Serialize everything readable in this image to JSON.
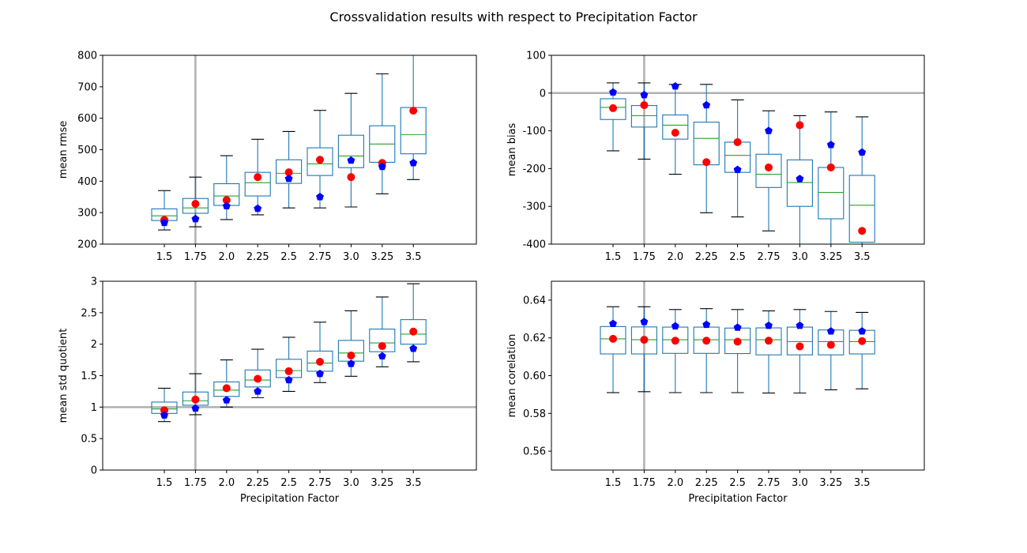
{
  "figure": {
    "title": "Crossvalidation results with respect to Precipitation Factor"
  },
  "chart_data": [
    {
      "type": "box",
      "xlabel": "",
      "ylabel": "mean rmse",
      "categories": [
        "1.5",
        "1.75",
        "2.0",
        "2.25",
        "2.5",
        "2.75",
        "3.0",
        "3.25",
        "3.5"
      ],
      "ylim": [
        200,
        800
      ],
      "yticks": [
        200,
        300,
        400,
        500,
        600,
        700,
        800
      ],
      "ref_vline": "1.75",
      "ref_hline": null,
      "boxes": [
        {
          "whislo": 245,
          "q1": 275,
          "med": 290,
          "q3": 312,
          "whishi": 370
        },
        {
          "whislo": 255,
          "q1": 298,
          "med": 315,
          "q3": 345,
          "whishi": 413
        },
        {
          "whislo": 278,
          "q1": 323,
          "med": 353,
          "q3": 392,
          "whishi": 481
        },
        {
          "whislo": 293,
          "q1": 353,
          "med": 395,
          "q3": 428,
          "whishi": 533
        },
        {
          "whislo": 315,
          "q1": 393,
          "med": 425,
          "q3": 468,
          "whishi": 558
        },
        {
          "whislo": 315,
          "q1": 418,
          "med": 455,
          "q3": 506,
          "whishi": 625
        },
        {
          "whislo": 318,
          "q1": 443,
          "med": 480,
          "q3": 546,
          "whishi": 679
        },
        {
          "whislo": 360,
          "q1": 460,
          "med": 518,
          "q3": 576,
          "whishi": 741
        },
        {
          "whislo": 405,
          "q1": 487,
          "med": 548,
          "q3": 634,
          "whishi": 800
        }
      ],
      "red_points": [
        277,
        328,
        340,
        413,
        428,
        468,
        413,
        458,
        624
      ],
      "blue_points": [
        268,
        280,
        321,
        313,
        408,
        350,
        466,
        446,
        458
      ]
    },
    {
      "type": "box",
      "xlabel": "",
      "ylabel": "mean bias",
      "categories": [
        "1.5",
        "1.75",
        "2.0",
        "2.25",
        "2.5",
        "2.75",
        "3.0",
        "3.25",
        "3.5"
      ],
      "ylim": [
        -400,
        100
      ],
      "yticks": [
        -400,
        -300,
        -200,
        -100,
        0,
        100
      ],
      "ref_vline": "1.75",
      "ref_hline": 0,
      "boxes": [
        {
          "whislo": -153,
          "q1": -70,
          "med": -38,
          "q3": -15,
          "whishi": 27
        },
        {
          "whislo": -175,
          "q1": -90,
          "med": -60,
          "q3": -33,
          "whishi": 27
        },
        {
          "whislo": -215,
          "q1": -122,
          "med": -85,
          "q3": -58,
          "whishi": 23
        },
        {
          "whislo": -317,
          "q1": -190,
          "med": -120,
          "q3": -77,
          "whishi": 23
        },
        {
          "whislo": -328,
          "q1": -210,
          "med": -165,
          "q3": -130,
          "whishi": -18
        },
        {
          "whislo": -365,
          "q1": -250,
          "med": -215,
          "q3": -162,
          "whishi": -47
        },
        {
          "whislo": -400,
          "q1": -300,
          "med": -237,
          "q3": -177,
          "whishi": -60
        },
        {
          "whislo": -400,
          "q1": -333,
          "med": -263,
          "q3": -197,
          "whishi": -50
        },
        {
          "whislo": -400,
          "q1": -395,
          "med": -297,
          "q3": -218,
          "whishi": -63
        }
      ],
      "red_points": [
        -40,
        -32,
        -105,
        -183,
        -130,
        -197,
        -85,
        -197,
        -365
      ],
      "blue_points": [
        2,
        -5,
        18,
        -32,
        -203,
        -100,
        -227,
        -137,
        -157
      ]
    },
    {
      "type": "box",
      "xlabel": "Precipitation Factor",
      "ylabel": "mean std quotient",
      "categories": [
        "1.5",
        "1.75",
        "2.0",
        "2.25",
        "2.5",
        "2.75",
        "3.0",
        "3.25",
        "3.5"
      ],
      "ylim": [
        0.0,
        3.0
      ],
      "yticks": [
        0.0,
        0.5,
        1.0,
        1.5,
        2.0,
        2.5,
        3.0
      ],
      "ref_vline": "1.75",
      "ref_hline": 1.0,
      "boxes": [
        {
          "whislo": 0.77,
          "q1": 0.9,
          "med": 0.97,
          "q3": 1.08,
          "whishi": 1.3
        },
        {
          "whislo": 0.88,
          "q1": 1.03,
          "med": 1.1,
          "q3": 1.24,
          "whishi": 1.53
        },
        {
          "whislo": 1.0,
          "q1": 1.17,
          "med": 1.27,
          "q3": 1.4,
          "whishi": 1.75
        },
        {
          "whislo": 1.15,
          "q1": 1.32,
          "med": 1.43,
          "q3": 1.59,
          "whishi": 1.92
        },
        {
          "whislo": 1.25,
          "q1": 1.47,
          "med": 1.58,
          "q3": 1.76,
          "whishi": 2.11
        },
        {
          "whislo": 1.39,
          "q1": 1.57,
          "med": 1.7,
          "q3": 1.89,
          "whishi": 2.35
        },
        {
          "whislo": 1.49,
          "q1": 1.73,
          "med": 1.86,
          "q3": 2.06,
          "whishi": 2.53
        },
        {
          "whislo": 1.64,
          "q1": 1.88,
          "med": 2.02,
          "q3": 2.24,
          "whishi": 2.75
        },
        {
          "whislo": 1.72,
          "q1": 2.0,
          "med": 2.16,
          "q3": 2.39,
          "whishi": 2.96
        }
      ],
      "red_points": [
        0.95,
        1.12,
        1.3,
        1.45,
        1.57,
        1.72,
        1.82,
        1.97,
        2.2
      ],
      "blue_points": [
        0.87,
        0.98,
        1.11,
        1.25,
        1.43,
        1.53,
        1.69,
        1.81,
        1.93
      ]
    },
    {
      "type": "box",
      "xlabel": "Precipitation Factor",
      "ylabel": "mean corelation",
      "categories": [
        "1.5",
        "1.75",
        "2.0",
        "2.25",
        "2.5",
        "2.75",
        "3.0",
        "3.25",
        "3.5"
      ],
      "ylim": [
        0.55,
        0.65
      ],
      "yticks": [
        0.56,
        0.58,
        0.6,
        0.62,
        0.64
      ],
      "ytick_labels": [
        "0.56",
        "0.58",
        "0.60",
        "0.62",
        "0.64"
      ],
      "ref_vline": "1.75",
      "ref_hline": null,
      "boxes": [
        {
          "whislo": 0.591,
          "q1": 0.6115,
          "med": 0.6195,
          "q3": 0.626,
          "whishi": 0.6365
        },
        {
          "whislo": 0.5915,
          "q1": 0.6115,
          "med": 0.619,
          "q3": 0.6258,
          "whishi": 0.6365
        },
        {
          "whislo": 0.591,
          "q1": 0.6118,
          "med": 0.619,
          "q3": 0.6257,
          "whishi": 0.635
        },
        {
          "whislo": 0.591,
          "q1": 0.6118,
          "med": 0.619,
          "q3": 0.6257,
          "whishi": 0.6355
        },
        {
          "whislo": 0.591,
          "q1": 0.6117,
          "med": 0.619,
          "q3": 0.6252,
          "whishi": 0.635
        },
        {
          "whislo": 0.5908,
          "q1": 0.611,
          "med": 0.619,
          "q3": 0.6253,
          "whishi": 0.6343
        },
        {
          "whislo": 0.5908,
          "q1": 0.611,
          "med": 0.618,
          "q3": 0.6257,
          "whishi": 0.635
        },
        {
          "whislo": 0.5925,
          "q1": 0.611,
          "med": 0.618,
          "q3": 0.6242,
          "whishi": 0.634
        },
        {
          "whislo": 0.593,
          "q1": 0.6115,
          "med": 0.618,
          "q3": 0.624,
          "whishi": 0.6335
        }
      ],
      "red_points": [
        0.6195,
        0.619,
        0.6185,
        0.6185,
        0.618,
        0.6185,
        0.6155,
        0.6163,
        0.6183
      ],
      "blue_points": [
        0.6275,
        0.6285,
        0.6262,
        0.627,
        0.6255,
        0.6265,
        0.6265,
        0.6235,
        0.6235
      ]
    }
  ]
}
